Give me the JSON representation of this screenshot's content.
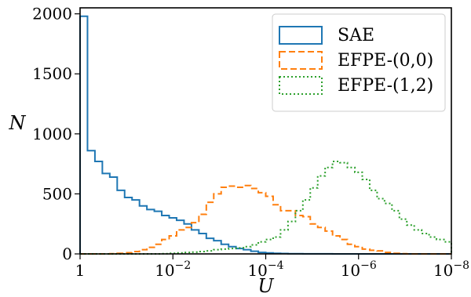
{
  "chart_data": {
    "type": "step-histogram",
    "title": "",
    "xlabel": "U",
    "ylabel": "N",
    "x_scale": "log",
    "x_inverted": true,
    "xlim": [
      1,
      1e-08
    ],
    "ylim": [
      0,
      2050
    ],
    "grid": false,
    "legend": {
      "placement": "top-right"
    },
    "x_ticks": [
      {
        "value": 1,
        "mantissa": "1",
        "exponent": ""
      },
      {
        "value": 0.01,
        "mantissa": "10",
        "exponent": "−2"
      },
      {
        "value": 0.0001,
        "mantissa": "10",
        "exponent": "−4"
      },
      {
        "value": 1e-06,
        "mantissa": "10",
        "exponent": "−6"
      },
      {
        "value": 1e-08,
        "mantissa": "10",
        "exponent": "−8"
      }
    ],
    "y_ticks": [
      {
        "value": 0,
        "label": "0"
      },
      {
        "value": 500,
        "label": "500"
      },
      {
        "value": 1000,
        "label": "1000"
      },
      {
        "value": 1500,
        "label": "1500"
      },
      {
        "value": 2000,
        "label": "2000"
      }
    ],
    "bin_decade_edges": [
      0,
      0.16,
      0.32,
      0.48,
      0.64,
      0.8,
      0.96,
      1.12,
      1.28,
      1.44,
      1.6,
      1.76,
      1.92,
      2.08,
      2.24,
      2.4,
      2.56,
      2.72,
      2.88,
      3.04,
      3.2,
      3.36,
      3.52,
      3.68,
      3.84,
      4.0,
      4.16,
      4.32,
      4.48,
      4.64,
      4.8,
      4.96,
      5.12,
      5.28,
      5.44,
      5.6,
      5.76,
      5.92,
      6.08,
      6.24,
      6.4,
      6.56,
      6.72,
      6.88,
      7.04,
      7.2,
      7.36,
      7.52,
      7.68,
      7.84,
      8.0
    ],
    "series": [
      {
        "name": "SAE",
        "color": "#1f77b4",
        "dash": "solid",
        "values": [
          1980,
          860,
          770,
          670,
          640,
          530,
          470,
          450,
          400,
          370,
          355,
          320,
          300,
          280,
          250,
          200,
          170,
          130,
          110,
          80,
          60,
          45,
          35,
          22,
          12,
          8,
          5,
          3,
          2,
          2,
          1,
          1,
          1,
          1,
          0,
          0,
          0,
          0,
          0,
          0,
          0,
          0,
          0,
          0,
          0,
          0,
          0,
          0,
          0,
          0
        ]
      },
      {
        "name": "EFPE-(0,0)",
        "color": "#ff7f0e",
        "dash": "dashed",
        "values": [
          0,
          0,
          0,
          0,
          2,
          5,
          10,
          20,
          35,
          55,
          80,
          120,
          150,
          200,
          220,
          260,
          330,
          430,
          500,
          555,
          565,
          555,
          570,
          545,
          510,
          480,
          410,
          360,
          360,
          320,
          310,
          250,
          220,
          190,
          150,
          120,
          80,
          60,
          40,
          30,
          25,
          12,
          5,
          2,
          0,
          0,
          0,
          0,
          0,
          0
        ]
      },
      {
        "name": "EFPE-(1,2)",
        "color": "#2ca02c",
        "dash": "dotted",
        "values": [
          0,
          0,
          0,
          0,
          0,
          0,
          0,
          0,
          0,
          0,
          0,
          2,
          5,
          8,
          12,
          15,
          20,
          25,
          35,
          40,
          45,
          50,
          60,
          75,
          100,
          120,
          140,
          200,
          270,
          360,
          450,
          550,
          650,
          720,
          770,
          760,
          720,
          680,
          620,
          530,
          460,
          420,
          360,
          290,
          240,
          200,
          170,
          140,
          120,
          100
        ]
      }
    ]
  }
}
